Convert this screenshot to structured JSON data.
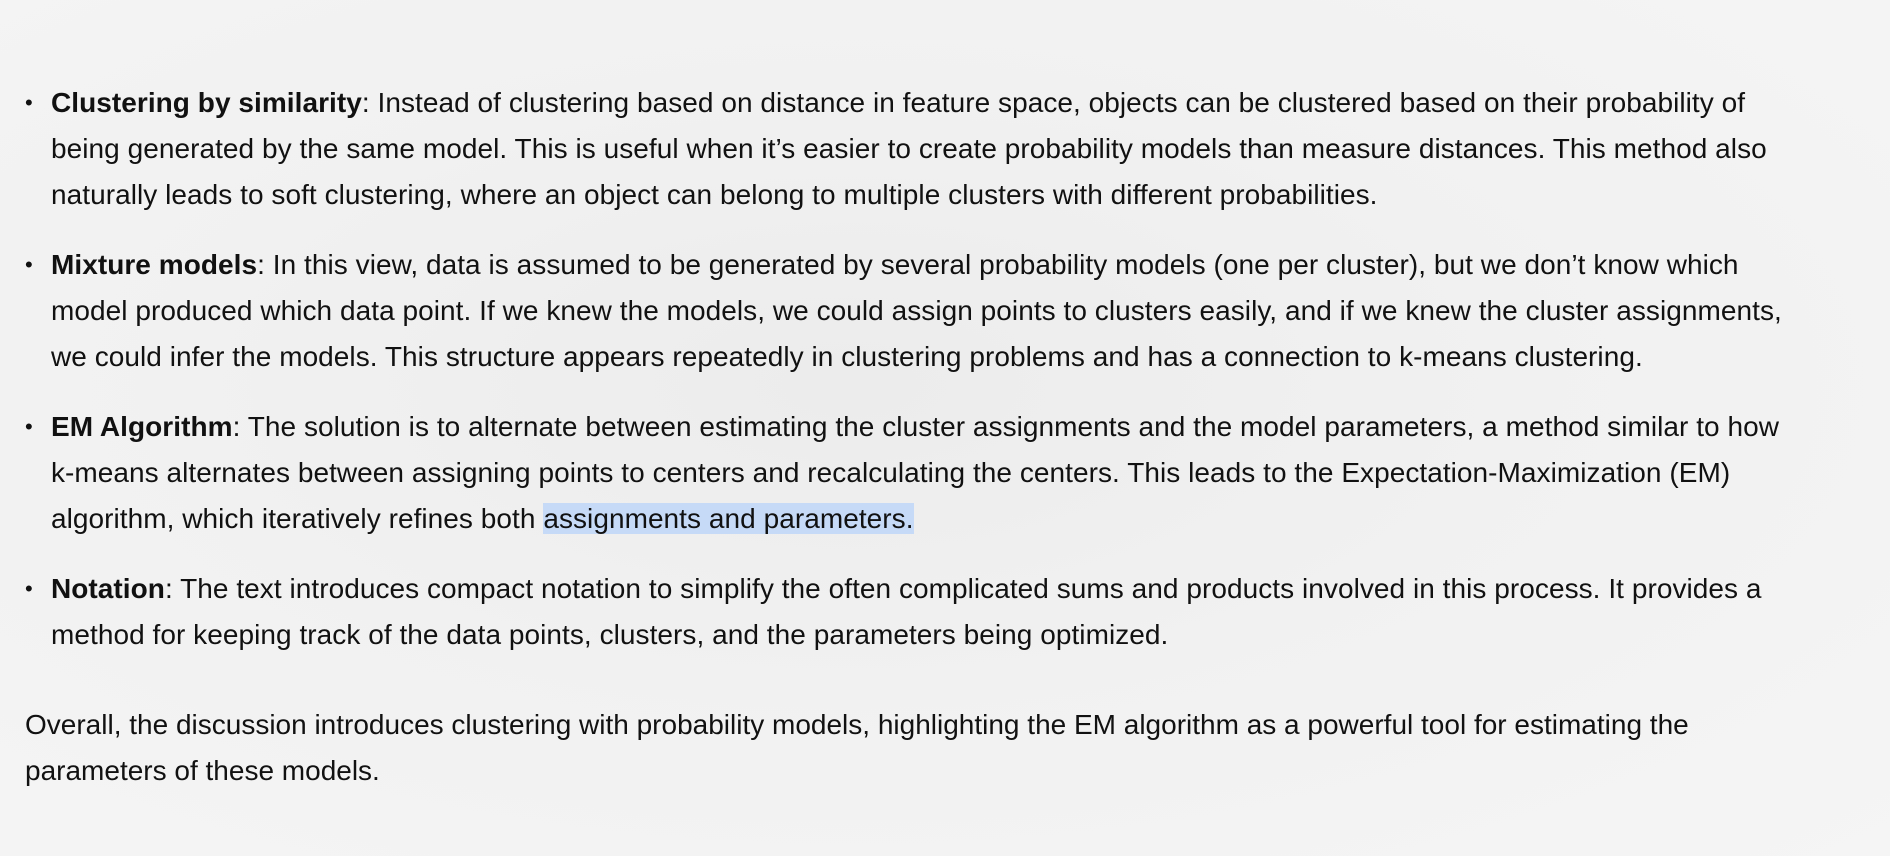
{
  "bullets": [
    {
      "term": "Clustering by similarity",
      "separator": ": ",
      "text": "Instead of clustering based on distance in feature space, objects can be clustered based on their probability of being generated by the same model. This is useful when it’s easier to create probability models than measure distances. This method also naturally leads to soft clustering, where an object can belong to multiple clusters with different probabilities."
    },
    {
      "term": "Mixture models",
      "separator": ": ",
      "text": "In this view, data is assumed to be generated by several probability models (one per cluster), but we don’t know which model produced which data point. If we knew the models, we could assign points to clusters easily, and if we knew the cluster assignments, we could infer the models. This structure appears repeatedly in clustering problems and has a connection to k-means clustering."
    },
    {
      "term": "EM Algorithm",
      "separator": ": ",
      "text_before_highlight": "The solution is to alternate between estimating the cluster assignments and the model parameters, a method similar to how k-means alternates between assigning points to centers and recalculating the centers. This leads to the Expectation-Maximization (EM) algorithm, which iteratively refines both ",
      "highlighted_text": "assignments and parameters."
    },
    {
      "term": "Notation",
      "separator": ": ",
      "text": "The text introduces compact notation to simplify the often complicated sums and products involved in this process. It provides a method for keeping track of the data points, clusters, and the parameters being optimized."
    }
  ],
  "summary": "Overall, the discussion introduces clustering with probability models, highlighting the EM algorithm as a powerful tool for estimating the parameters of these models.",
  "colors": {
    "selection_highlight": "#c6daf7",
    "text": "#111111",
    "background": "#f3f3f3"
  }
}
